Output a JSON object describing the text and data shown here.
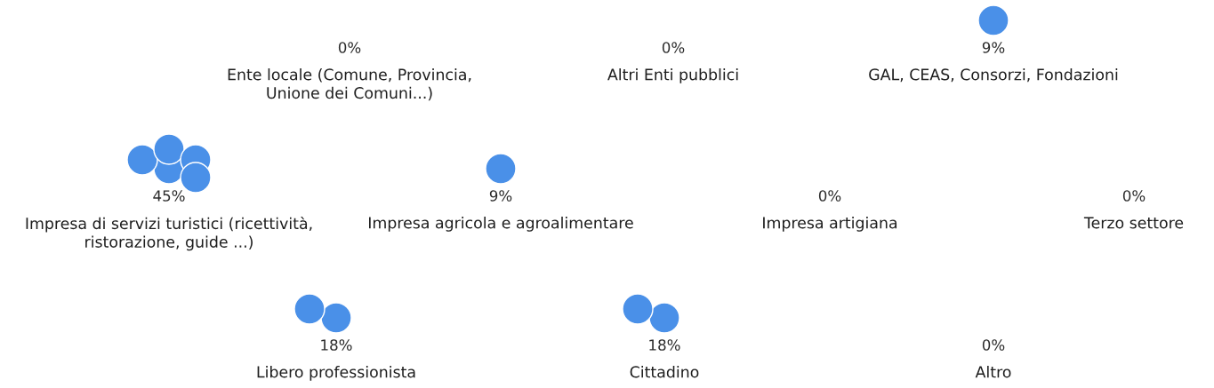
{
  "chart_data": {
    "type": "other",
    "categories": [
      "Ente locale (Comune, Provincia,\nUnione dei Comuni...)",
      "Altri Enti pubblici",
      "GAL, CEAS, Consorzi, Fondazioni",
      "Impresa di servizi turistici (ricettività,\nristorazione, guide ...)",
      "Impresa agricola e agroalimentare",
      "Impresa artigiana",
      "Terzo settore",
      "Libero professionista",
      "Cittadino",
      "Altro"
    ],
    "values": [
      0,
      0,
      9,
      45,
      9,
      0,
      0,
      18,
      18,
      0
    ],
    "value_labels": [
      "0%",
      "0%",
      "9%",
      "45%",
      "9%",
      "0%",
      "0%",
      "18%",
      "18%",
      "0%"
    ],
    "color": "#4a90e8"
  }
}
